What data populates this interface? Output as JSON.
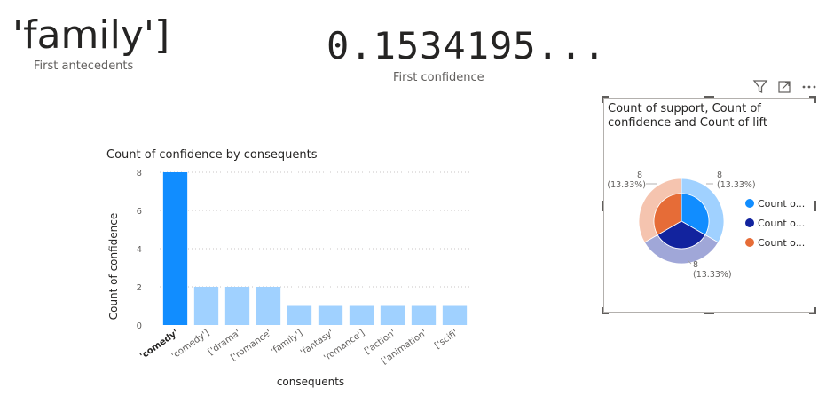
{
  "card1": {
    "value": "'family']",
    "label": "First antecedents"
  },
  "card2": {
    "value": "0.1534195...",
    "label": "First confidence"
  },
  "bar": {
    "chart_data": {
      "type": "bar",
      "title": "Count of confidence by consequents",
      "xlabel": "consequents",
      "ylabel": "Count of confidence",
      "ylim": [
        0,
        8
      ],
      "yticks": [
        "0",
        "2",
        "4",
        "6",
        "8"
      ],
      "grid": true,
      "categories": [
        "'comedy'",
        "'comedy']",
        "['drama'",
        "['romance'",
        "'family']",
        "'fantasy'",
        "'romance']",
        "['action'",
        "['animation'",
        "['scifi'"
      ],
      "values": [
        8,
        2,
        2,
        2,
        1,
        1,
        1,
        1,
        1,
        1
      ],
      "highlighted_index": 0,
      "colors": {
        "highlight": "#118dff",
        "normal": "#a0d1ff",
        "grid": "#c8c6c4"
      }
    }
  },
  "pie": {
    "chart_data": {
      "type": "pie",
      "title": "Count of support, Count of confidence and Count of lift",
      "title_lines": [
        "Count of support, Count of",
        "confidence and Count of lift"
      ],
      "rings": [
        {
          "name": "Count o...",
          "values": [
            8,
            8,
            8
          ]
        },
        {
          "name": "Count o...",
          "values": [
            8,
            8,
            8
          ]
        }
      ],
      "labels": [
        {
          "value": "8",
          "pct": "(13.33%)"
        },
        {
          "value": "8",
          "pct": "(13.33%)"
        },
        {
          "value": "8",
          "pct": "(13.33%)"
        }
      ],
      "legend": [
        {
          "label": "Count o...",
          "color": "#118dff"
        },
        {
          "label": "Count o...",
          "color": "#12239e"
        },
        {
          "label": "Count o...",
          "color": "#e66c37"
        }
      ],
      "legend_position": "right",
      "colors": {
        "inner": [
          "#118dff",
          "#12239e",
          "#e66c37"
        ],
        "outer": [
          "#a0d1ff",
          "#a0a7d8",
          "#f5c4af"
        ]
      }
    }
  },
  "header_icons": [
    "filter-icon",
    "focus-mode-icon",
    "more-options-icon"
  ]
}
